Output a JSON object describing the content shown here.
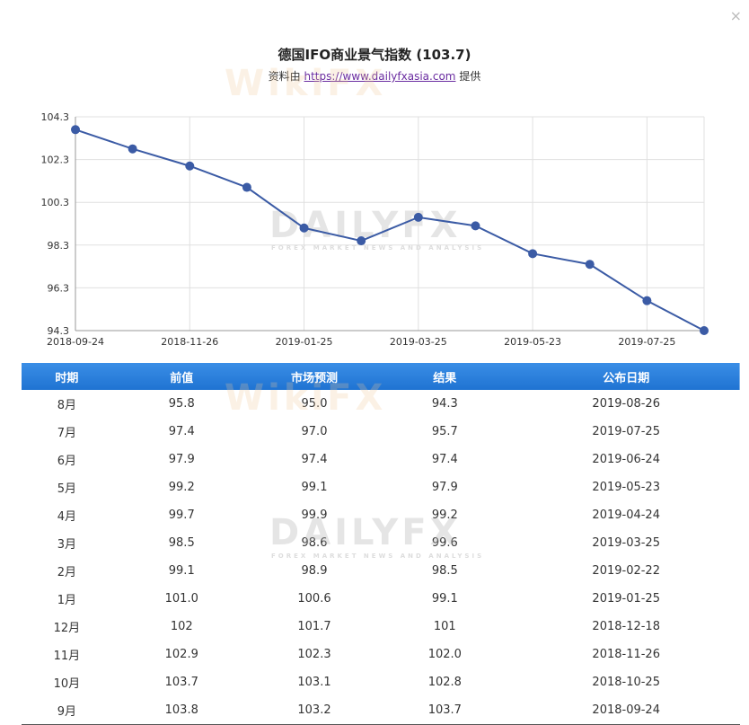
{
  "dialog": {
    "close_label": "×"
  },
  "header": {
    "title": "德国IFO商业景气指数 (103.7)",
    "source_prefix": "资料由",
    "source_link": "https://www.dailyfxasia.com",
    "source_suffix": "提供"
  },
  "watermarks": {
    "dailyfx": "DAILYFX",
    "dailyfx_sub": "FOREX MARKET NEWS AND ANALYSIS",
    "wikifx": "WikiFX"
  },
  "colors": {
    "line": "#3b5ba5",
    "header_bg": "#2a80dd",
    "grid": "#e0e0e0"
  },
  "chart_data": {
    "type": "line",
    "x": [
      "2018-09-24",
      "2018-10-25",
      "2018-11-26",
      "2018-12-18",
      "2019-01-25",
      "2019-02-22",
      "2019-03-25",
      "2019-04-24",
      "2019-05-23",
      "2019-06-24",
      "2019-07-25",
      "2019-08-26"
    ],
    "values": [
      103.7,
      102.8,
      102.0,
      101.0,
      99.1,
      98.5,
      99.6,
      99.2,
      97.9,
      97.4,
      95.7,
      94.3
    ],
    "xticks": [
      "2018-09-24",
      "2018-11-26",
      "2019-01-25",
      "2019-03-25",
      "2019-05-23",
      "2019-07-25"
    ],
    "yticks": [
      "104.3",
      "102.3",
      "100.3",
      "98.3",
      "96.3",
      "94.3"
    ],
    "ylim": [
      94.3,
      104.3
    ],
    "grid": true
  },
  "table": {
    "headers": [
      "时期",
      "前值",
      "市场预测",
      "结果",
      "公布日期"
    ],
    "rows": [
      [
        "8月",
        "95.8",
        "95.0",
        "94.3",
        "2019-08-26"
      ],
      [
        "7月",
        "97.4",
        "97.0",
        "95.7",
        "2019-07-25"
      ],
      [
        "6月",
        "97.9",
        "97.4",
        "97.4",
        "2019-06-24"
      ],
      [
        "5月",
        "99.2",
        "99.1",
        "97.9",
        "2019-05-23"
      ],
      [
        "4月",
        "99.7",
        "99.9",
        "99.2",
        "2019-04-24"
      ],
      [
        "3月",
        "98.5",
        "98.6",
        "99.6",
        "2019-03-25"
      ],
      [
        "2月",
        "99.1",
        "98.9",
        "98.5",
        "2019-02-22"
      ],
      [
        "1月",
        "101.0",
        "100.6",
        "99.1",
        "2019-01-25"
      ],
      [
        "12月",
        "102",
        "101.7",
        "101",
        "2018-12-18"
      ],
      [
        "11月",
        "102.9",
        "102.3",
        "102.0",
        "2018-11-26"
      ],
      [
        "10月",
        "103.7",
        "103.1",
        "102.8",
        "2018-10-25"
      ],
      [
        "9月",
        "103.8",
        "103.2",
        "103.7",
        "2018-09-24"
      ]
    ]
  }
}
